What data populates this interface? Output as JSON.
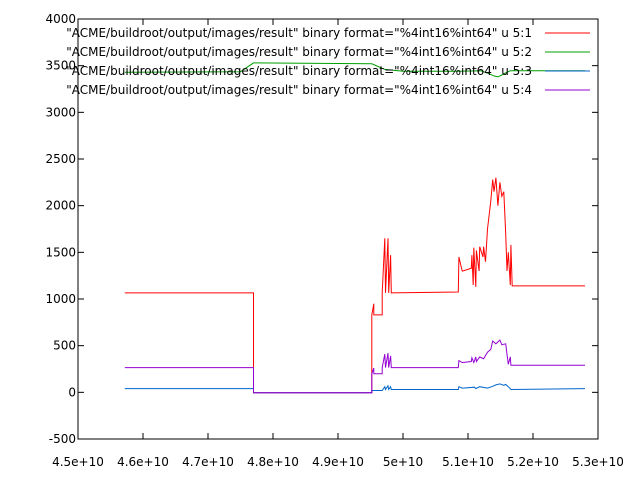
{
  "chart_data": {
    "type": "line",
    "title": "",
    "xlabel": "",
    "ylabel": "",
    "xlim": [
      45000000000.0,
      53000000000.0
    ],
    "ylim": [
      -500,
      4000
    ],
    "grid": false,
    "legend_placement": "top-right",
    "x_ticks": [
      {
        "value": 45000000000.0,
        "label": "4.5e+10"
      },
      {
        "value": 46000000000.0,
        "label": "4.6e+10"
      },
      {
        "value": 47000000000.0,
        "label": "4.7e+10"
      },
      {
        "value": 48000000000.0,
        "label": "4.8e+10"
      },
      {
        "value": 49000000000.0,
        "label": "4.9e+10"
      },
      {
        "value": 50000000000.0,
        "label": "5e+10"
      },
      {
        "value": 51000000000.0,
        "label": "5.1e+10"
      },
      {
        "value": 52000000000.0,
        "label": "5.2e+10"
      },
      {
        "value": 53000000000.0,
        "label": "5.3e+10"
      }
    ],
    "y_ticks": [
      {
        "value": -500,
        "label": "-500"
      },
      {
        "value": 0,
        "label": "0"
      },
      {
        "value": 500,
        "label": "500"
      },
      {
        "value": 1000,
        "label": "1000"
      },
      {
        "value": 1500,
        "label": "1500"
      },
      {
        "value": 2000,
        "label": "2000"
      },
      {
        "value": 2500,
        "label": "2500"
      },
      {
        "value": 3000,
        "label": "3000"
      },
      {
        "value": 3500,
        "label": "3500"
      },
      {
        "value": 4000,
        "label": "4000"
      }
    ],
    "series": [
      {
        "name": "\"ACME/buildroot/output/images/result\" binary format=\"%4int16%int64\" u 5:1",
        "color": "#ff0000",
        "x": [
          45720000000.0,
          47700000000.0,
          47700000000.0,
          49520000000.0,
          49520000000.0,
          49550000000.0,
          49550000000.0,
          49680000000.0,
          49680000000.0,
          49720000000.0,
          49730000000.0,
          49770000000.0,
          49780000000.0,
          49810000000.0,
          49820000000.0,
          50850000000.0,
          50860000000.0,
          50910000000.0,
          50920000000.0,
          51050000000.0,
          51060000000.0,
          51080000000.0,
          51090000000.0,
          51120000000.0,
          51130000000.0,
          51170000000.0,
          51180000000.0,
          51230000000.0,
          51240000000.0,
          51270000000.0,
          51300000000.0,
          51350000000.0,
          51380000000.0,
          51400000000.0,
          51430000000.0,
          51460000000.0,
          51490000000.0,
          51520000000.0,
          51550000000.0,
          51580000000.0,
          51600000000.0,
          51620000000.0,
          51650000000.0,
          51660000000.0,
          51680000000.0,
          52800000000.0
        ],
        "y": [
          1065,
          1065,
          -5,
          -5,
          830,
          950,
          830,
          830,
          1065,
          1650,
          1065,
          1650,
          1065,
          1470,
          1065,
          1075,
          1450,
          1300,
          1300,
          1330,
          1470,
          1150,
          1550,
          1130,
          1520,
          1300,
          1560,
          1450,
          1560,
          1400,
          1750,
          2050,
          2280,
          2150,
          2300,
          2000,
          2250,
          2100,
          2150,
          1700,
          1300,
          1500,
          1150,
          1580,
          1140,
          1140
        ]
      },
      {
        "name": "\"ACME/buildroot/output/images/result\" binary format=\"%4int16%int64\" u 5:2",
        "color": "#00a000",
        "x": [
          45720000000.0,
          47500000000.0,
          47700000000.0,
          49520000000.0,
          49720000000.0,
          50000000000.0,
          50850000000.0,
          51200000000.0,
          51300000000.0,
          51400000000.0,
          51460000000.0,
          51520000000.0,
          51600000000.0,
          51650000000.0,
          52800000000.0
        ],
        "y": [
          3430,
          3435,
          3530,
          3520,
          3460,
          3440,
          3440,
          3445,
          3420,
          3390,
          3380,
          3400,
          3430,
          3445,
          3445
        ]
      },
      {
        "name": "\"ACME/buildroot/output/images/result\" binary format=\"%4int16%int64\" u 5:3",
        "color": "#0066cc",
        "x": [
          45720000000.0,
          47700000000.0,
          47700000000.0,
          49520000000.0,
          49520000000.0,
          49680000000.0,
          49720000000.0,
          49730000000.0,
          49770000000.0,
          49780000000.0,
          49810000000.0,
          49820000000.0,
          50850000000.0,
          50860000000.0,
          50910000000.0,
          50920000000.0,
          51100000000.0,
          51120000000.0,
          51180000000.0,
          51300000000.0,
          51380000000.0,
          51430000000.0,
          51490000000.0,
          51550000000.0,
          51580000000.0,
          51650000000.0,
          51660000000.0,
          52800000000.0
        ],
        "y": [
          40,
          40,
          -5,
          -5,
          20,
          20,
          60,
          30,
          70,
          30,
          60,
          30,
          30,
          60,
          45,
          45,
          55,
          40,
          60,
          45,
          65,
          80,
          90,
          75,
          85,
          40,
          30,
          40
        ]
      },
      {
        "name": "\"ACME/buildroot/output/images/result\" binary format=\"%4int16%int64\" u 5:4",
        "color": "#9400d3",
        "x": [
          45720000000.0,
          47700000000.0,
          47700000000.0,
          49520000000.0,
          49520000000.0,
          49550000000.0,
          49550000000.0,
          49680000000.0,
          49680000000.0,
          49720000000.0,
          49730000000.0,
          49770000000.0,
          49780000000.0,
          49810000000.0,
          49820000000.0,
          50850000000.0,
          50860000000.0,
          50910000000.0,
          50920000000.0,
          51050000000.0,
          51060000000.0,
          51090000000.0,
          51120000000.0,
          51130000000.0,
          51180000000.0,
          51240000000.0,
          51300000000.0,
          51350000000.0,
          51380000000.0,
          51430000000.0,
          51490000000.0,
          51520000000.0,
          51580000000.0,
          51620000000.0,
          51650000000.0,
          51660000000.0,
          52800000000.0
        ],
        "y": [
          265,
          265,
          -5,
          -5,
          200,
          260,
          200,
          200,
          265,
          410,
          265,
          420,
          265,
          390,
          265,
          265,
          340,
          320,
          320,
          330,
          370,
          320,
          380,
          330,
          380,
          360,
          430,
          460,
          550,
          520,
          560,
          510,
          520,
          300,
          380,
          290,
          290
        ]
      }
    ]
  }
}
